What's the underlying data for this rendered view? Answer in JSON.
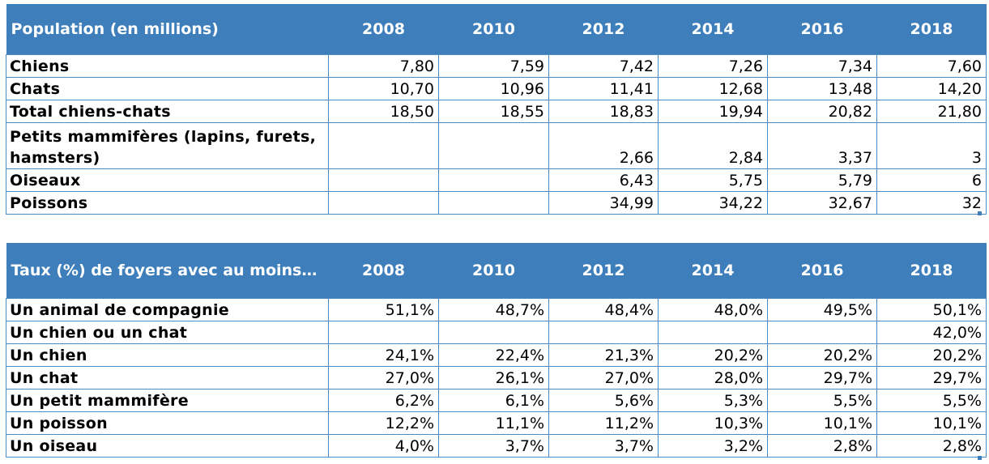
{
  "table1": {
    "header": {
      "label": "Population (en millions)",
      "years": [
        "2008",
        "2010",
        "2012",
        "2014",
        "2016",
        "2018"
      ]
    },
    "rows": [
      {
        "label": "Chiens",
        "values": [
          "7,80",
          "7,59",
          "7,42",
          "7,26",
          "7,34",
          "7,60"
        ]
      },
      {
        "label": "Chats",
        "values": [
          "10,70",
          "10,96",
          "11,41",
          "12,68",
          "13,48",
          "14,20"
        ]
      },
      {
        "label": "Total chiens-chats",
        "values": [
          "18,50",
          "18,55",
          "18,83",
          "19,94",
          "20,82",
          "21,80"
        ]
      },
      {
        "label": "Petits mammifères (lapins, furets, hamsters)",
        "values": [
          "",
          "",
          "2,66",
          "2,84",
          "3,37",
          "3"
        ]
      },
      {
        "label": "Oiseaux",
        "values": [
          "",
          "",
          "6,43",
          "5,75",
          "5,79",
          "6"
        ]
      },
      {
        "label": "Poissons",
        "values": [
          "",
          "",
          "34,99",
          "34,22",
          "32,67",
          "32"
        ]
      }
    ]
  },
  "table2": {
    "header": {
      "label": "Taux (%)  de foyers avec au moins…",
      "years": [
        "2008",
        "2010",
        "2012",
        "2014",
        "2016",
        "2018"
      ]
    },
    "rows": [
      {
        "label": "Un animal de compagnie",
        "values": [
          "51,1%",
          "48,7%",
          "48,4%",
          "48,0%",
          "49,5%",
          "50,1%"
        ]
      },
      {
        "label": "Un chien ou un chat",
        "values": [
          "",
          "",
          "",
          "",
          "",
          "42,0%"
        ]
      },
      {
        "label": "Un chien",
        "values": [
          "24,1%",
          "22,4%",
          "21,3%",
          "20,2%",
          "20,2%",
          "20,2%"
        ]
      },
      {
        "label": "Un chat",
        "values": [
          "27,0%",
          "26,1%",
          "27,0%",
          "28,0%",
          "29,7%",
          "29,7%"
        ]
      },
      {
        "label": "Un petit mammifère",
        "values": [
          "6,2%",
          "6,1%",
          "5,6%",
          "5,3%",
          "5,5%",
          "5,5%"
        ]
      },
      {
        "label": "Un poisson",
        "values": [
          "12,2%",
          "11,1%",
          "11,2%",
          "10,3%",
          "10,1%",
          "10,1%"
        ]
      },
      {
        "label": "Un oiseau",
        "values": [
          "4,0%",
          "3,7%",
          "3,7%",
          "3,2%",
          "2,8%",
          "2,8%"
        ]
      }
    ]
  },
  "colors": {
    "header_bg": "#3d7ebb",
    "header_text": "#ffffff",
    "grid": "#4a8bc6"
  }
}
